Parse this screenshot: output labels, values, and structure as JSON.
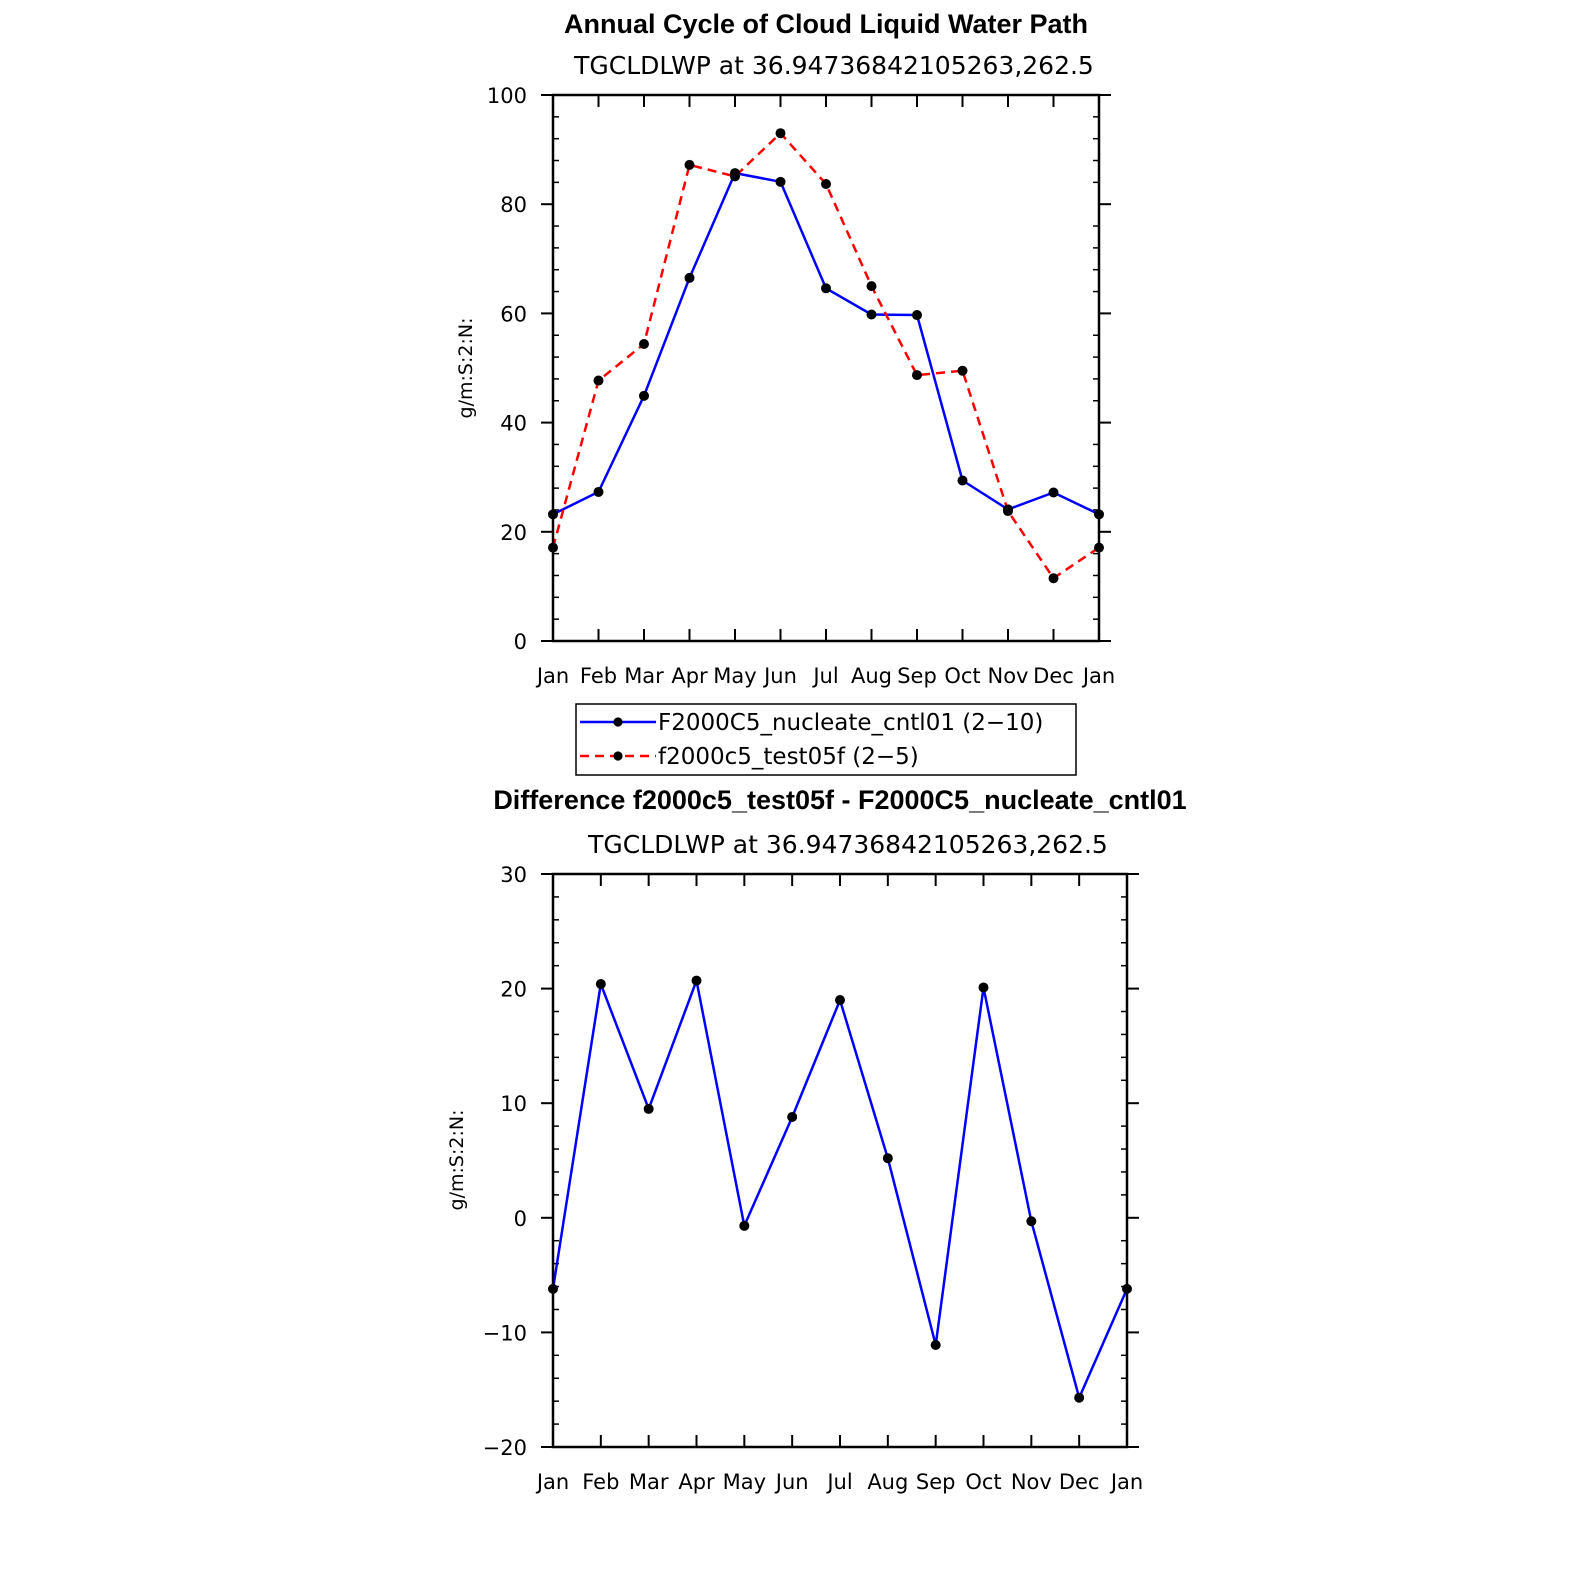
{
  "chart_data": [
    {
      "type": "line",
      "title": "Annual Cycle of Cloud Liquid Water Path",
      "subtitle": "TGCLDLWP at 36.94736842105263,262.5",
      "ylabel": "g/m:S:2:N:",
      "xlabel": "",
      "categories": [
        "Jan",
        "Feb",
        "Mar",
        "Apr",
        "May",
        "Jun",
        "Jul",
        "Aug",
        "Sep",
        "Oct",
        "Nov",
        "Dec",
        "Jan"
      ],
      "ylim": [
        0,
        100
      ],
      "yticks": [
        "0",
        "20",
        "40",
        "60",
        "80",
        "100"
      ],
      "grid": false,
      "legend": "bottom",
      "series": [
        {
          "name": "F2000C5_nucleate_cntl01 (2−10)",
          "color": "#0000ff",
          "style": "solid",
          "values": [
            23.2,
            27.3,
            44.9,
            66.5,
            85.7,
            84.1,
            64.6,
            59.8,
            59.7,
            29.4,
            24.1,
            27.2,
            23.2
          ]
        },
        {
          "name": "f2000c5_test05f (2−5)",
          "color": "#ff0000",
          "style": "dashed",
          "values": [
            17.1,
            47.7,
            54.4,
            87.2,
            85.1,
            93.0,
            83.7,
            65.0,
            48.7,
            49.5,
            23.8,
            11.5,
            17.1
          ]
        }
      ]
    },
    {
      "type": "line",
      "title": "Difference f2000c5_test05f - F2000C5_nucleate_cntl01",
      "subtitle": "TGCLDLWP at 36.94736842105263,262.5",
      "ylabel": "g/m:S:2:N:",
      "xlabel": "",
      "categories": [
        "Jan",
        "Feb",
        "Mar",
        "Apr",
        "May",
        "Jun",
        "Jul",
        "Aug",
        "Sep",
        "Oct",
        "Nov",
        "Dec",
        "Jan"
      ],
      "ylim": [
        -20,
        30
      ],
      "yticks": [
        "−20",
        "−10",
        "0",
        "10",
        "20",
        "30"
      ],
      "grid": false,
      "series": [
        {
          "color": "#0000ff",
          "style": "solid",
          "values": [
            -6.2,
            20.4,
            9.5,
            20.7,
            -0.7,
            8.8,
            19.0,
            5.2,
            -11.1,
            20.1,
            -0.3,
            -15.7,
            -6.2
          ]
        }
      ]
    }
  ]
}
